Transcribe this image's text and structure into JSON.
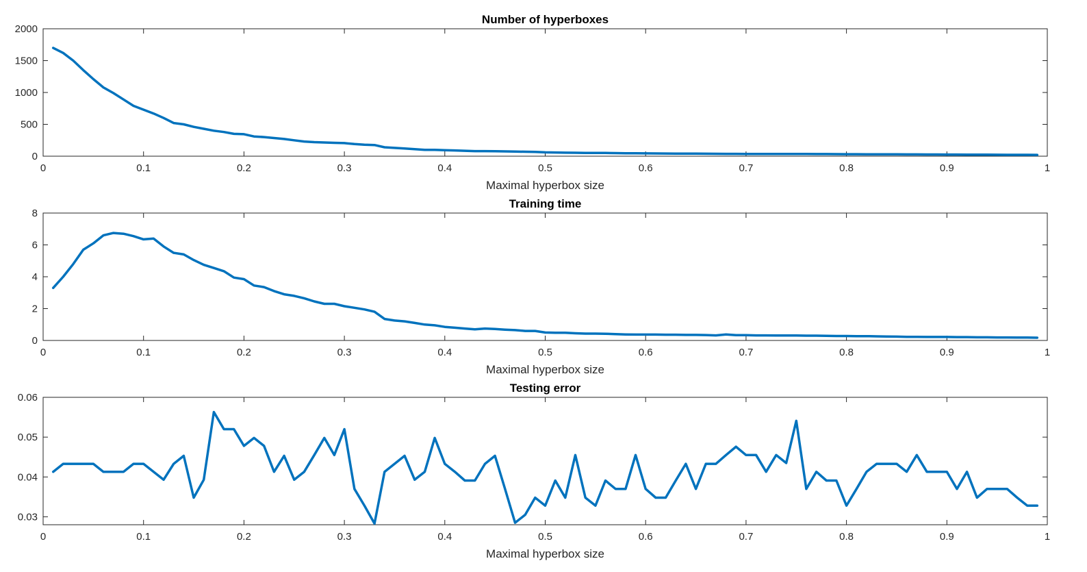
{
  "chart_data": [
    {
      "type": "line",
      "title": "Number of hyperboxes",
      "xlabel": "Maximal hyperbox size",
      "ylabel": "",
      "xlim": [
        0,
        1
      ],
      "ylim": [
        0,
        2000
      ],
      "grid": false,
      "x_ticks": [
        0,
        0.1,
        0.2,
        0.3,
        0.4,
        0.5,
        0.6,
        0.7,
        0.8,
        0.9,
        1
      ],
      "x_tick_labels": [
        "0",
        "0.1",
        "0.2",
        "0.3",
        "0.4",
        "0.5",
        "0.6",
        "0.7",
        "0.8",
        "0.9",
        "1"
      ],
      "y_ticks": [
        0,
        500,
        1000,
        1500,
        2000
      ],
      "y_tick_labels": [
        "0",
        "500",
        "1000",
        "1500",
        "2000"
      ],
      "color": "#0072BD",
      "series": [
        {
          "x": [
            0.01,
            0.02,
            0.03,
            0.04,
            0.05,
            0.06,
            0.07,
            0.08,
            0.09,
            0.1,
            0.11,
            0.12,
            0.13,
            0.14,
            0.15,
            0.16,
            0.17,
            0.18,
            0.19,
            0.2,
            0.21,
            0.22,
            0.23,
            0.24,
            0.25,
            0.26,
            0.27,
            0.28,
            0.29,
            0.3,
            0.31,
            0.32,
            0.33,
            0.34,
            0.35,
            0.36,
            0.37,
            0.38,
            0.39,
            0.4,
            0.41,
            0.42,
            0.43,
            0.44,
            0.45,
            0.46,
            0.47,
            0.48,
            0.49,
            0.5,
            0.51,
            0.52,
            0.53,
            0.54,
            0.55,
            0.56,
            0.57,
            0.58,
            0.59,
            0.6,
            0.61,
            0.62,
            0.63,
            0.64,
            0.65,
            0.66,
            0.67,
            0.68,
            0.69,
            0.7,
            0.71,
            0.72,
            0.73,
            0.74,
            0.75,
            0.76,
            0.77,
            0.78,
            0.79,
            0.8,
            0.81,
            0.82,
            0.83,
            0.84,
            0.85,
            0.86,
            0.87,
            0.88,
            0.89,
            0.9,
            0.91,
            0.92,
            0.93,
            0.94,
            0.95,
            0.96,
            0.97,
            0.98,
            0.99
          ],
          "y": [
            1700,
            1620,
            1500,
            1350,
            1210,
            1080,
            990,
            890,
            790,
            730,
            670,
            600,
            520,
            500,
            460,
            430,
            400,
            380,
            350,
            345,
            310,
            300,
            285,
            270,
            250,
            230,
            220,
            215,
            210,
            205,
            190,
            180,
            175,
            140,
            130,
            120,
            110,
            100,
            100,
            95,
            90,
            85,
            80,
            80,
            78,
            75,
            72,
            70,
            68,
            60,
            58,
            55,
            54,
            52,
            52,
            50,
            48,
            46,
            45,
            44,
            43,
            42,
            41,
            40,
            40,
            39,
            38,
            37,
            37,
            36,
            36,
            35,
            35,
            35,
            35,
            34,
            33,
            33,
            32,
            31,
            31,
            30,
            30,
            29,
            29,
            28,
            28,
            27,
            27,
            26,
            26,
            25,
            24,
            24,
            23,
            22,
            22,
            21,
            20
          ]
        }
      ]
    },
    {
      "type": "line",
      "title": "Training time",
      "xlabel": "Maximal hyperbox size",
      "ylabel": "",
      "xlim": [
        0,
        1
      ],
      "ylim": [
        0,
        8
      ],
      "grid": false,
      "x_ticks": [
        0,
        0.1,
        0.2,
        0.3,
        0.4,
        0.5,
        0.6,
        0.7,
        0.8,
        0.9,
        1
      ],
      "x_tick_labels": [
        "0",
        "0.1",
        "0.2",
        "0.3",
        "0.4",
        "0.5",
        "0.6",
        "0.7",
        "0.8",
        "0.9",
        "1"
      ],
      "y_ticks": [
        0,
        2,
        4,
        6,
        8
      ],
      "y_tick_labels": [
        "0",
        "2",
        "4",
        "6",
        "8"
      ],
      "color": "#0072BD",
      "series": [
        {
          "x": [
            0.01,
            0.02,
            0.03,
            0.04,
            0.05,
            0.06,
            0.07,
            0.08,
            0.09,
            0.1,
            0.11,
            0.12,
            0.13,
            0.14,
            0.15,
            0.16,
            0.17,
            0.18,
            0.19,
            0.2,
            0.21,
            0.22,
            0.23,
            0.24,
            0.25,
            0.26,
            0.27,
            0.28,
            0.29,
            0.3,
            0.31,
            0.32,
            0.33,
            0.34,
            0.35,
            0.36,
            0.37,
            0.38,
            0.39,
            0.4,
            0.41,
            0.42,
            0.43,
            0.44,
            0.45,
            0.46,
            0.47,
            0.48,
            0.49,
            0.5,
            0.51,
            0.52,
            0.53,
            0.54,
            0.55,
            0.56,
            0.57,
            0.58,
            0.59,
            0.6,
            0.61,
            0.62,
            0.63,
            0.64,
            0.65,
            0.66,
            0.67,
            0.68,
            0.69,
            0.7,
            0.71,
            0.72,
            0.73,
            0.74,
            0.75,
            0.76,
            0.77,
            0.78,
            0.79,
            0.8,
            0.81,
            0.82,
            0.83,
            0.84,
            0.85,
            0.86,
            0.87,
            0.88,
            0.89,
            0.9,
            0.91,
            0.92,
            0.93,
            0.94,
            0.95,
            0.96,
            0.97,
            0.98,
            0.99
          ],
          "y": [
            3.3,
            4.0,
            4.8,
            5.7,
            6.1,
            6.6,
            6.75,
            6.7,
            6.55,
            6.35,
            6.4,
            5.9,
            5.5,
            5.4,
            5.05,
            4.75,
            4.55,
            4.35,
            3.95,
            3.85,
            3.45,
            3.35,
            3.1,
            2.9,
            2.8,
            2.65,
            2.45,
            2.3,
            2.3,
            2.15,
            2.05,
            1.95,
            1.8,
            1.35,
            1.25,
            1.2,
            1.1,
            1.0,
            0.95,
            0.85,
            0.8,
            0.75,
            0.7,
            0.75,
            0.72,
            0.68,
            0.65,
            0.6,
            0.6,
            0.5,
            0.48,
            0.48,
            0.45,
            0.43,
            0.43,
            0.42,
            0.4,
            0.38,
            0.37,
            0.37,
            0.37,
            0.36,
            0.36,
            0.35,
            0.35,
            0.34,
            0.32,
            0.38,
            0.33,
            0.33,
            0.32,
            0.32,
            0.31,
            0.31,
            0.31,
            0.3,
            0.3,
            0.29,
            0.28,
            0.28,
            0.27,
            0.27,
            0.26,
            0.25,
            0.24,
            0.23,
            0.23,
            0.22,
            0.22,
            0.22,
            0.21,
            0.21,
            0.2,
            0.2,
            0.19,
            0.19,
            0.18,
            0.18,
            0.17
          ]
        }
      ]
    },
    {
      "type": "line",
      "title": "Testing error",
      "xlabel": "Maximal hyperbox size",
      "ylabel": "",
      "xlim": [
        0,
        1
      ],
      "ylim": [
        0.028,
        0.06
      ],
      "grid": false,
      "x_ticks": [
        0,
        0.1,
        0.2,
        0.3,
        0.4,
        0.5,
        0.6,
        0.7,
        0.8,
        0.9,
        1
      ],
      "x_tick_labels": [
        "0",
        "0.1",
        "0.2",
        "0.3",
        "0.4",
        "0.5",
        "0.6",
        "0.7",
        "0.8",
        "0.9",
        "1"
      ],
      "y_ticks": [
        0.03,
        0.04,
        0.05,
        0.06
      ],
      "y_tick_labels": [
        "0.03",
        "0.04",
        "0.05",
        "0.06"
      ],
      "color": "#0072BD",
      "series": [
        {
          "x": [
            0.01,
            0.02,
            0.03,
            0.04,
            0.05,
            0.06,
            0.07,
            0.08,
            0.09,
            0.1,
            0.11,
            0.12,
            0.13,
            0.14,
            0.15,
            0.16,
            0.17,
            0.18,
            0.19,
            0.2,
            0.21,
            0.22,
            0.23,
            0.24,
            0.25,
            0.26,
            0.27,
            0.28,
            0.29,
            0.3,
            0.31,
            0.32,
            0.33,
            0.34,
            0.35,
            0.36,
            0.37,
            0.38,
            0.39,
            0.4,
            0.41,
            0.42,
            0.43,
            0.44,
            0.45,
            0.46,
            0.47,
            0.48,
            0.49,
            0.5,
            0.51,
            0.52,
            0.53,
            0.54,
            0.55,
            0.56,
            0.57,
            0.58,
            0.59,
            0.6,
            0.61,
            0.62,
            0.63,
            0.64,
            0.65,
            0.66,
            0.67,
            0.68,
            0.69,
            0.7,
            0.71,
            0.72,
            0.73,
            0.74,
            0.75,
            0.76,
            0.77,
            0.78,
            0.79,
            0.8,
            0.81,
            0.82,
            0.83,
            0.84,
            0.85,
            0.86,
            0.87,
            0.88,
            0.89,
            0.9,
            0.91,
            0.92,
            0.93,
            0.94,
            0.95,
            0.96,
            0.97,
            0.98,
            0.99
          ],
          "y": [
            0.0413,
            0.0433,
            0.0433,
            0.0433,
            0.0433,
            0.0413,
            0.0413,
            0.0413,
            0.0433,
            0.0433,
            0.0413,
            0.0393,
            0.0433,
            0.0453,
            0.0348,
            0.0393,
            0.0563,
            0.052,
            0.052,
            0.0478,
            0.0498,
            0.0478,
            0.0413,
            0.0453,
            0.0393,
            0.0413,
            0.0455,
            0.0498,
            0.0455,
            0.052,
            0.037,
            0.0328,
            0.0283,
            0.0413,
            0.0433,
            0.0453,
            0.0393,
            0.0413,
            0.0498,
            0.0433,
            0.0413,
            0.0391,
            0.0391,
            0.0433,
            0.0453,
            0.037,
            0.0285,
            0.0305,
            0.0348,
            0.0328,
            0.0391,
            0.0348,
            0.0455,
            0.0348,
            0.0328,
            0.0391,
            0.037,
            0.037,
            0.0455,
            0.037,
            0.0348,
            0.0348,
            0.0391,
            0.0433,
            0.037,
            0.0433,
            0.0433,
            0.0455,
            0.0476,
            0.0455,
            0.0455,
            0.0413,
            0.0455,
            0.0435,
            0.0541,
            0.037,
            0.0413,
            0.0391,
            0.0391,
            0.0328,
            0.037,
            0.0413,
            0.0433,
            0.0433,
            0.0433,
            0.0413,
            0.0455,
            0.0413,
            0.0413,
            0.0413,
            0.037,
            0.0413,
            0.0348,
            0.037,
            0.037,
            0.037,
            0.0348,
            0.0328,
            0.0328
          ]
        }
      ]
    }
  ]
}
